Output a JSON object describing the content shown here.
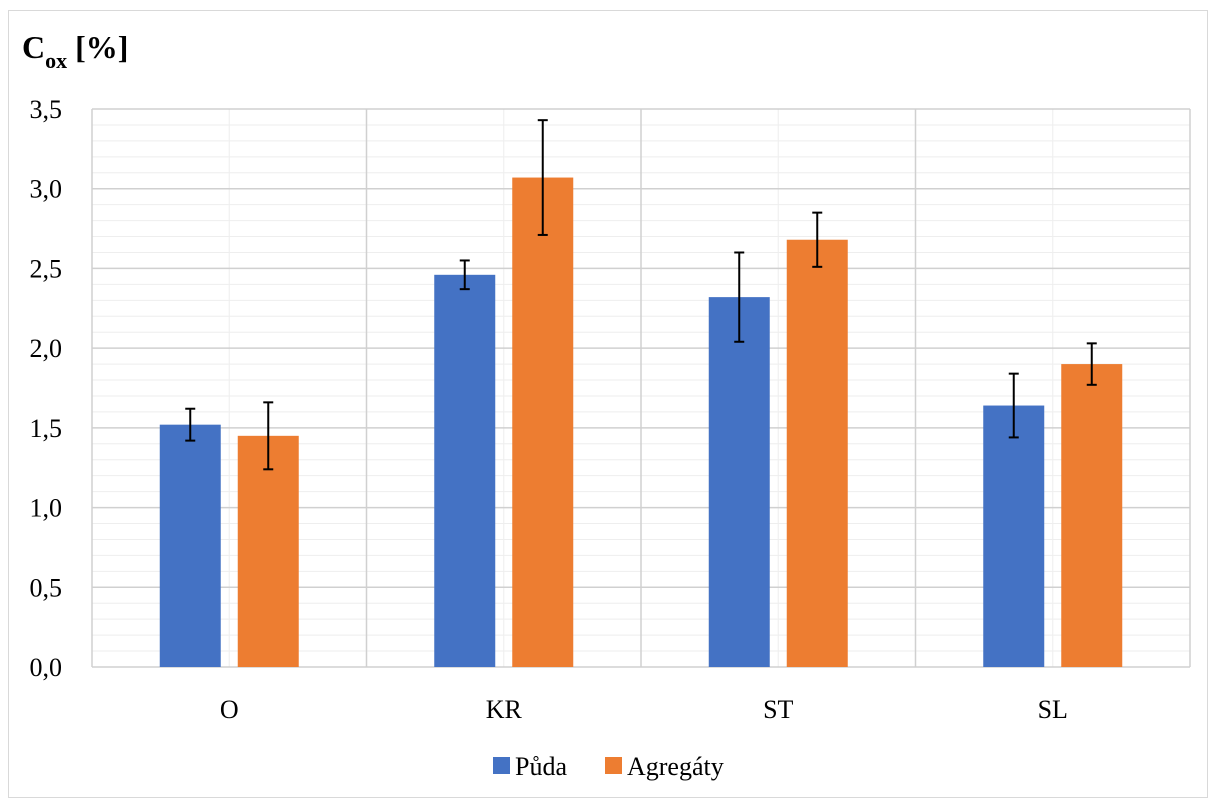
{
  "chart_data": {
    "type": "bar",
    "title": {
      "main": "C",
      "subscript": "ox",
      "unit": " [%]"
    },
    "categories": [
      "O",
      "KR",
      "ST",
      "SL"
    ],
    "series": [
      {
        "name": "Půda",
        "color": "#4472C4",
        "values": [
          1.52,
          2.46,
          2.32,
          1.64
        ],
        "errors": [
          0.1,
          0.09,
          0.28,
          0.2
        ]
      },
      {
        "name": "Agregáty",
        "color": "#ED7D31",
        "values": [
          1.45,
          3.07,
          2.68,
          1.9
        ],
        "errors": [
          0.21,
          0.36,
          0.17,
          0.13
        ]
      }
    ],
    "y_ticks": [
      "0,0",
      "0,5",
      "1,0",
      "1,5",
      "2,0",
      "2,5",
      "3,0",
      "3,5"
    ],
    "ylim": [
      0,
      3.5
    ],
    "major_step": 0.5,
    "minor_step": 0.1,
    "grid": true,
    "legend_position": "bottom",
    "error_bar_color": "#000000"
  }
}
